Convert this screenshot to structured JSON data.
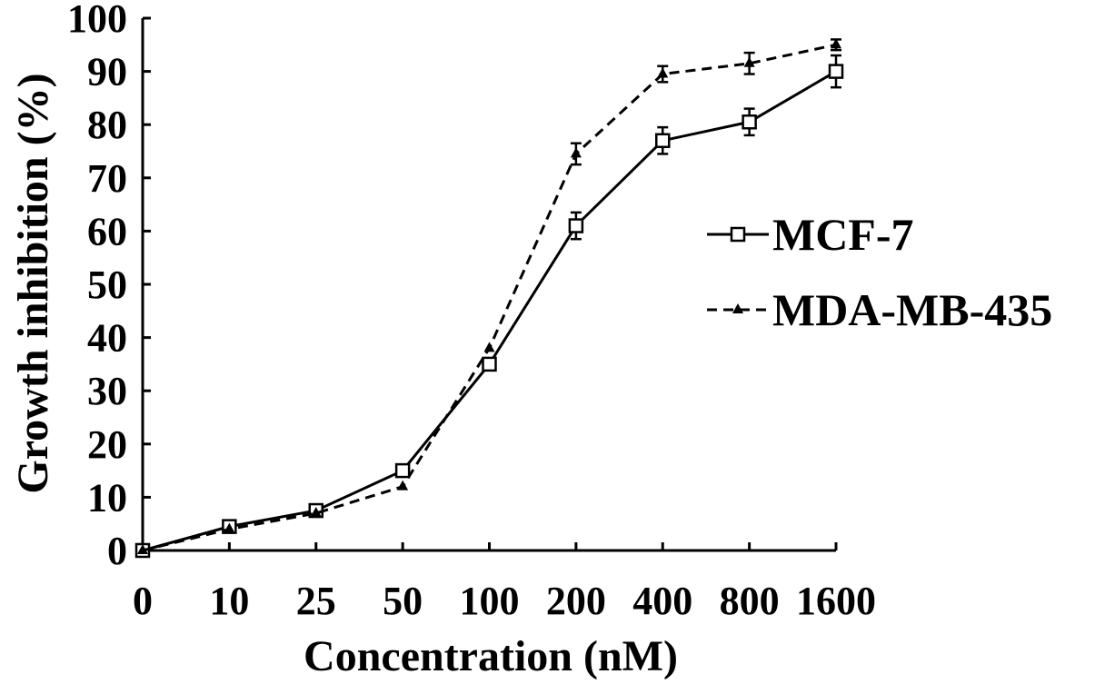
{
  "chart_data": {
    "type": "line",
    "xlabel": "Concentration (nM)",
    "ylabel": "Growth inhibition (%)",
    "categories": [
      "0",
      "10",
      "25",
      "50",
      "100",
      "200",
      "400",
      "800",
      "1600"
    ],
    "yticks": [
      "0",
      "10",
      "20",
      "30",
      "40",
      "50",
      "60",
      "70",
      "80",
      "90",
      "100"
    ],
    "ylim": [
      0,
      100
    ],
    "grid": false,
    "legend_position": "right",
    "series": [
      {
        "name": "MCF-7",
        "line_style": "solid",
        "marker": "open-square",
        "values": [
          0,
          4.5,
          7.5,
          15,
          35,
          61,
          77,
          80.5,
          90
        ],
        "errors": [
          0,
          0,
          0,
          0,
          0,
          2.5,
          2.5,
          2.5,
          3
        ]
      },
      {
        "name": "MDA-MB-435",
        "line_style": "dashed",
        "marker": "filled-triangle",
        "values": [
          0,
          4,
          7,
          12,
          38,
          74.5,
          89.5,
          91.5,
          95
        ],
        "errors": [
          0,
          0,
          0,
          0,
          0,
          2,
          1.5,
          2,
          1
        ]
      }
    ]
  }
}
